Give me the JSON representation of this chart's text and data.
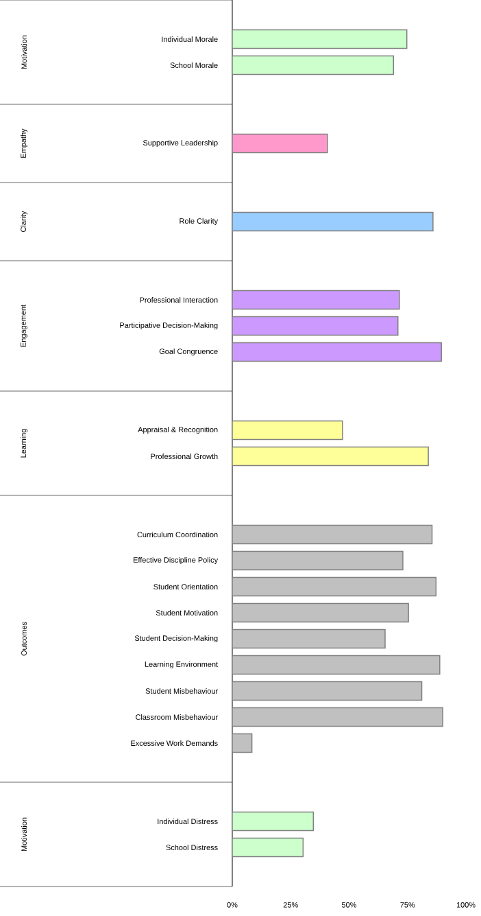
{
  "chart_data": {
    "type": "bar",
    "orientation": "horizontal",
    "categories": [
      "Individual Morale",
      "School Morale",
      null,
      null,
      "Supportive Leadership",
      null,
      null,
      "Role Clarity",
      null,
      null,
      "Professional Interaction",
      "Participative Decision-Making",
      "Goal Congruence",
      null,
      null,
      "Appraisal & Recognition",
      "Professional Growth",
      null,
      null,
      "Curriculum Coordination",
      "Effective Discipline Policy",
      "Student Orientation",
      "Student Motivation",
      "Student Decision-Making",
      "Learning Environment",
      "Student Misbehaviour",
      "Classroom Misbehaviour",
      "Excessive Work Demands",
      null,
      null,
      "Individual Distress",
      "School Distress"
    ],
    "values": [
      74.7,
      69.0,
      null,
      null,
      40.7,
      null,
      null,
      85.9,
      null,
      null,
      71.5,
      70.9,
      89.5,
      null,
      null,
      47.2,
      83.9,
      null,
      null,
      85.5,
      73.0,
      87.2,
      75.4,
      65.4,
      88.8,
      81.1,
      90.1,
      8.4,
      null,
      null,
      34.7,
      30.3
    ],
    "colors": [
      "#ccffcc",
      "#ccffcc",
      null,
      null,
      "#ff99cc",
      null,
      null,
      "#99ccff",
      null,
      null,
      "#cc99ff",
      "#cc99ff",
      "#cc99ff",
      null,
      null,
      "#ffff99",
      "#ffff99",
      null,
      null,
      "#c0c0c0",
      "#c0c0c0",
      "#c0c0c0",
      "#c0c0c0",
      "#c0c0c0",
      "#c0c0c0",
      "#c0c0c0",
      "#c0c0c0",
      "#c0c0c0",
      null,
      null,
      "#ccffcc",
      "#ccffcc"
    ],
    "annotations": [
      "Motivation",
      "Empathy",
      "Clarity",
      "Engagement",
      "Learning",
      "Outcomes",
      "Motivation"
    ],
    "xlim": [
      0,
      100
    ],
    "xticks": [
      {
        "value": 0,
        "label": "0%"
      },
      {
        "value": 25,
        "label": "25%"
      },
      {
        "value": 50,
        "label": "50%"
      },
      {
        "value": 75,
        "label": "75%"
      },
      {
        "value": 100,
        "label": "100%"
      }
    ],
    "grid": false
  }
}
